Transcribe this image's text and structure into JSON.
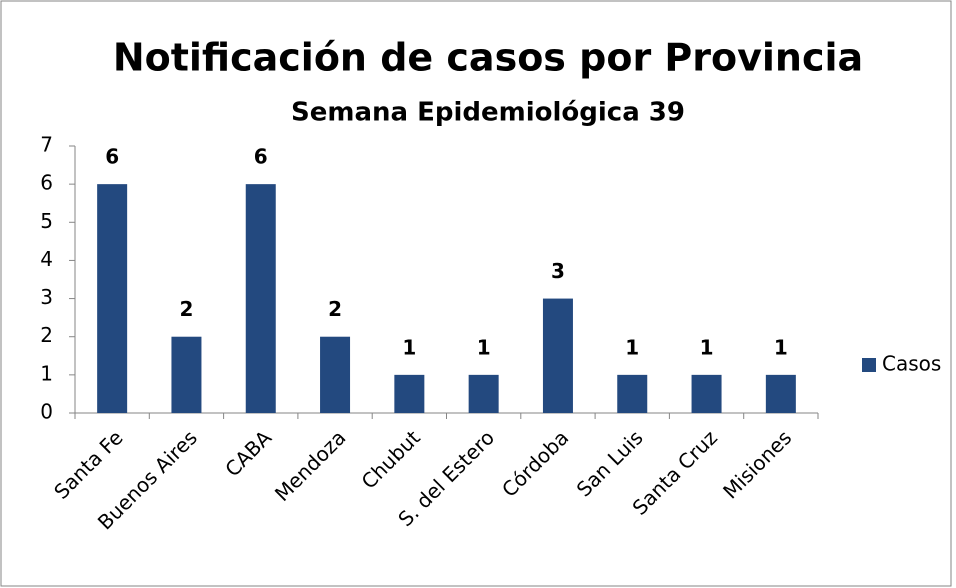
{
  "chart_data": {
    "type": "bar",
    "title": "Notificación de casos por Provincia",
    "subtitle": "Semana Epidemiológica 39",
    "categories": [
      "Santa Fe",
      "Buenos Aires",
      "CABA",
      "Mendoza",
      "Chubut",
      "S. del Estero",
      "Córdoba",
      "San Luis",
      "Santa Cruz",
      "Misiones"
    ],
    "series": [
      {
        "name": "Casos",
        "color": "#23497f",
        "values": [
          6,
          2,
          6,
          2,
          1,
          1,
          3,
          1,
          1,
          1
        ]
      }
    ],
    "ylim": [
      0,
      7
    ],
    "yticks": [
      0,
      1,
      2,
      3,
      4,
      5,
      6,
      7
    ],
    "grid": false,
    "legend": "right",
    "data_labels": true
  }
}
